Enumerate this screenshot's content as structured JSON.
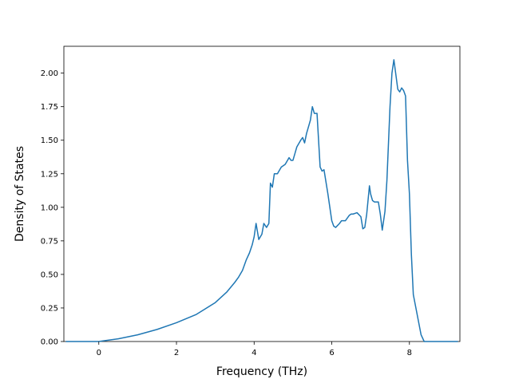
{
  "chart_data": {
    "type": "line",
    "title": "",
    "xlabel": "Frequency (THz)",
    "ylabel": "Density of States",
    "xlim": [
      -0.9,
      9.3
    ],
    "ylim": [
      0.0,
      2.2
    ],
    "xticks": [
      0,
      2,
      4,
      6,
      8
    ],
    "xtick_labels": [
      "0",
      "2",
      "4",
      "6",
      "8"
    ],
    "yticks": [
      0.0,
      0.25,
      0.5,
      0.75,
      1.0,
      1.25,
      1.5,
      1.75,
      2.0
    ],
    "ytick_labels": [
      "0.00",
      "0.25",
      "0.50",
      "0.75",
      "1.00",
      "1.25",
      "1.50",
      "1.75",
      "2.00"
    ],
    "grid": false,
    "legend": "none",
    "line_color": "#1f77b4",
    "series": [
      {
        "x": [
          -0.85,
          0.0,
          0.5,
          1.0,
          1.5,
          2.0,
          2.5,
          3.0,
          3.3,
          3.5,
          3.6,
          3.7,
          3.8,
          3.88,
          3.95,
          4.0,
          4.05,
          4.12,
          4.2,
          4.25,
          4.32,
          4.38,
          4.42,
          4.47,
          4.52,
          4.6,
          4.7,
          4.8,
          4.9,
          4.95,
          5.0,
          5.05,
          5.1,
          5.2,
          5.25,
          5.3,
          5.35,
          5.4,
          5.45,
          5.5,
          5.55,
          5.62,
          5.7,
          5.75,
          5.8,
          5.9,
          6.0,
          6.05,
          6.1,
          6.2,
          6.25,
          6.35,
          6.45,
          6.5,
          6.55,
          6.65,
          6.75,
          6.8,
          6.85,
          6.9,
          6.97,
          7.0,
          7.05,
          7.1,
          7.2,
          7.25,
          7.3,
          7.37,
          7.42,
          7.5,
          7.55,
          7.6,
          7.7,
          7.75,
          7.8,
          7.85,
          7.9,
          7.95,
          8.0,
          8.05,
          8.1,
          8.2,
          8.3,
          8.38,
          8.5,
          9.25
        ],
        "values": [
          0.0,
          0.0,
          0.02,
          0.05,
          0.09,
          0.14,
          0.2,
          0.29,
          0.37,
          0.44,
          0.48,
          0.53,
          0.61,
          0.66,
          0.72,
          0.78,
          0.88,
          0.76,
          0.8,
          0.88,
          0.85,
          0.88,
          1.18,
          1.15,
          1.25,
          1.25,
          1.3,
          1.32,
          1.37,
          1.35,
          1.35,
          1.4,
          1.45,
          1.5,
          1.52,
          1.48,
          1.55,
          1.6,
          1.65,
          1.75,
          1.7,
          1.7,
          1.3,
          1.27,
          1.28,
          1.1,
          0.9,
          0.86,
          0.85,
          0.88,
          0.9,
          0.9,
          0.94,
          0.95,
          0.95,
          0.96,
          0.93,
          0.84,
          0.85,
          0.95,
          1.16,
          1.1,
          1.05,
          1.04,
          1.04,
          0.95,
          0.83,
          0.97,
          1.2,
          1.75,
          2.0,
          2.1,
          1.88,
          1.86,
          1.89,
          1.87,
          1.83,
          1.35,
          1.1,
          0.65,
          0.35,
          0.2,
          0.05,
          0.0,
          0.0,
          0.0
        ]
      }
    ]
  }
}
